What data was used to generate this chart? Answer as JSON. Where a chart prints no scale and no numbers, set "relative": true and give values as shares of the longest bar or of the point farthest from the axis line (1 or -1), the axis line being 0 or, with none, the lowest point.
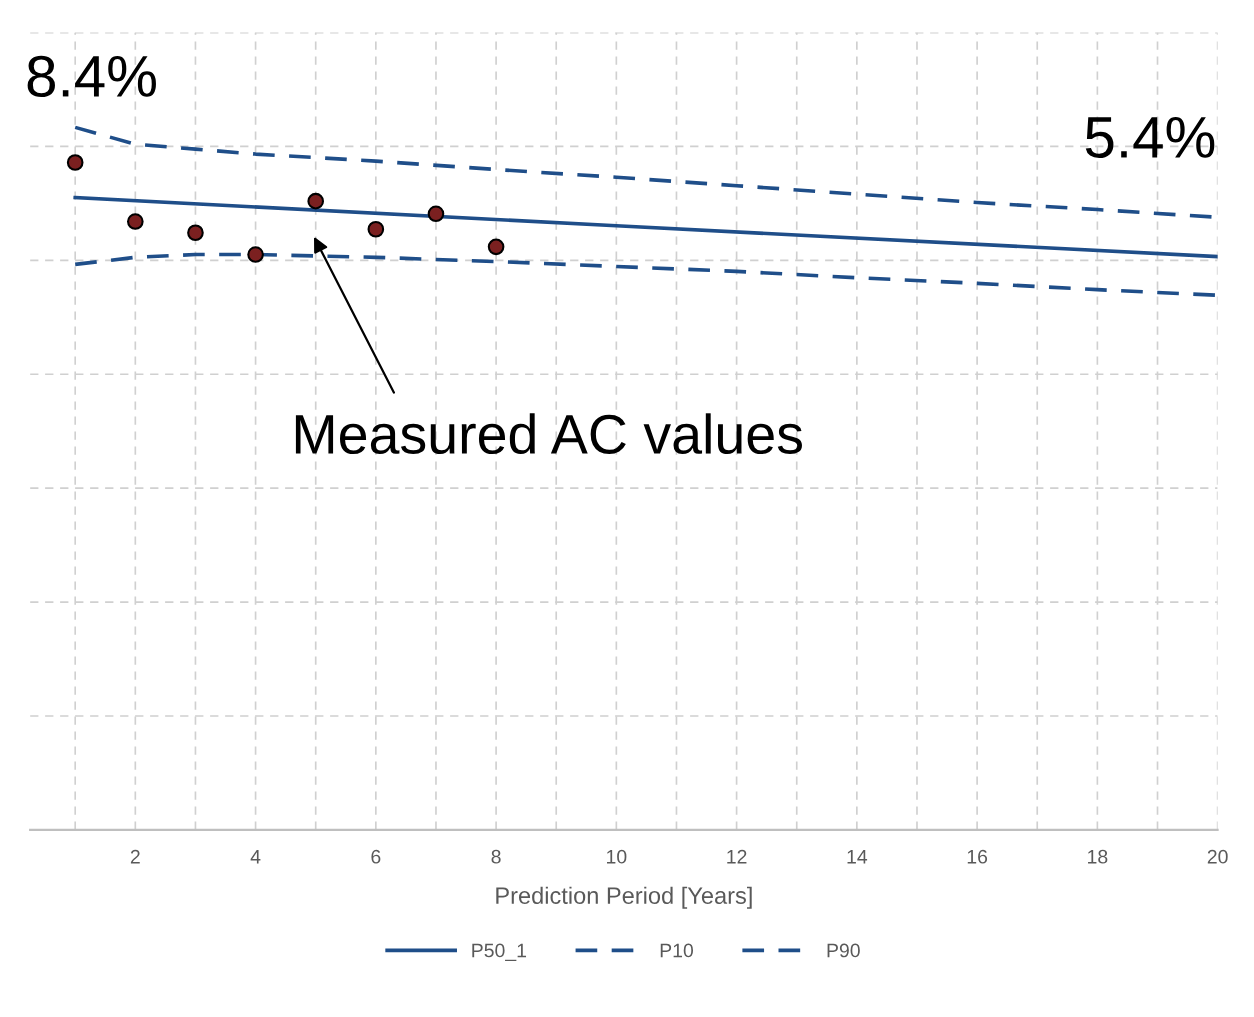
{
  "chart_data": {
    "type": "line",
    "relative": true,
    "xlabel": "Prediction Period [Years]",
    "xlim": [
      0.25,
      20
    ],
    "xticks": [
      2,
      4,
      6,
      8,
      10,
      12,
      14,
      16,
      18,
      20
    ],
    "grid": true,
    "legend": "bottom",
    "line_style": "solid",
    "marker": "none",
    "series": [
      {
        "name": "P50_1",
        "color": "#1f4e89",
        "x": [
          1,
          10,
          20
        ],
        "values": [
          0.9,
          0.86,
          0.816
        ]
      },
      {
        "name": "P10",
        "color": "#1f4e89",
        "line_style": "dashed",
        "x": [
          1,
          2,
          3,
          4,
          6,
          8,
          10,
          12,
          14,
          16,
          18,
          20
        ],
        "values": [
          0.805,
          0.815,
          0.819,
          0.819,
          0.815,
          0.809,
          0.802,
          0.795,
          0.786,
          0.778,
          0.769,
          0.761
        ]
      },
      {
        "name": "P90",
        "color": "#1f4e89",
        "line_style": "dashed",
        "x": [
          1,
          2,
          3,
          4,
          6,
          8,
          10,
          12,
          14,
          16,
          18,
          20
        ],
        "values": [
          1.0,
          0.976,
          0.969,
          0.962,
          0.952,
          0.94,
          0.929,
          0.917,
          0.905,
          0.893,
          0.883,
          0.872
        ]
      },
      {
        "type": "scatter",
        "color": "#7b2020",
        "marker": "circle",
        "x": [
          1,
          2,
          3,
          4,
          5,
          6,
          7,
          8
        ],
        "values": [
          0.95,
          0.866,
          0.85,
          0.819,
          0.895,
          0.855,
          0.877,
          0.83
        ]
      }
    ],
    "annotations": [
      "8.4%",
      "5.4%",
      "Measured AC values"
    ]
  }
}
